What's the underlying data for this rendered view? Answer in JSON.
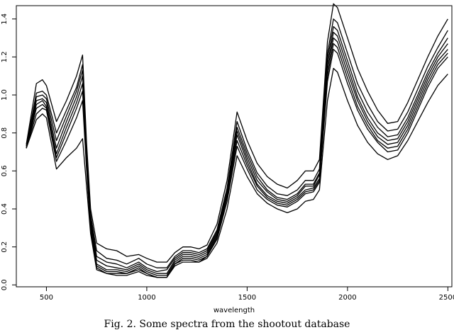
{
  "chart_data": {
    "type": "line",
    "title": "",
    "xlabel": "wavelength",
    "ylabel": "",
    "xlim": [
      350,
      2520
    ],
    "ylim": [
      -0.01,
      1.47
    ],
    "x_ticks": [
      500,
      1000,
      1500,
      2000,
      2500
    ],
    "y_ticks": [
      0.0,
      0.2,
      0.4,
      0.6,
      0.8,
      1.0,
      1.2,
      1.4
    ],
    "x_tick_labels": [
      "500",
      "1000",
      "1500",
      "2000",
      "2500"
    ],
    "y_tick_labels": [
      "0.0",
      "0.2",
      "0.4",
      "0.6",
      "0.8",
      "1.0",
      "1.2",
      "1.4"
    ],
    "grid": false,
    "line_color": "#000000",
    "x": [
      400,
      450,
      480,
      500,
      550,
      600,
      650,
      680,
      700,
      720,
      750,
      800,
      850,
      900,
      960,
      1000,
      1050,
      1100,
      1140,
      1180,
      1220,
      1260,
      1300,
      1350,
      1400,
      1450,
      1500,
      1550,
      1600,
      1650,
      1700,
      1750,
      1790,
      1830,
      1860,
      1900,
      1930,
      1950,
      2000,
      2050,
      2100,
      2150,
      2200,
      2250,
      2300,
      2350,
      2400,
      2450,
      2500
    ],
    "series": [
      {
        "values": [
          0.74,
          1.06,
          1.08,
          1.05,
          0.86,
          0.97,
          1.1,
          1.21,
          0.75,
          0.4,
          0.22,
          0.19,
          0.18,
          0.15,
          0.16,
          0.14,
          0.12,
          0.12,
          0.17,
          0.2,
          0.2,
          0.19,
          0.21,
          0.32,
          0.55,
          0.91,
          0.76,
          0.64,
          0.57,
          0.53,
          0.51,
          0.55,
          0.6,
          0.6,
          0.66,
          1.28,
          1.48,
          1.46,
          1.3,
          1.14,
          1.02,
          0.92,
          0.85,
          0.86,
          0.96,
          1.08,
          1.2,
          1.31,
          1.4
        ]
      },
      {
        "values": [
          0.73,
          1.01,
          1.02,
          1.0,
          0.8,
          0.92,
          1.04,
          1.16,
          0.71,
          0.37,
          0.18,
          0.14,
          0.13,
          0.11,
          0.14,
          0.11,
          0.09,
          0.09,
          0.15,
          0.18,
          0.18,
          0.17,
          0.19,
          0.29,
          0.51,
          0.86,
          0.71,
          0.59,
          0.52,
          0.48,
          0.47,
          0.5,
          0.55,
          0.55,
          0.61,
          1.22,
          1.4,
          1.38,
          1.22,
          1.06,
          0.95,
          0.86,
          0.81,
          0.82,
          0.91,
          1.03,
          1.15,
          1.25,
          1.34
        ]
      },
      {
        "values": [
          0.73,
          0.99,
          1.0,
          0.98,
          0.76,
          0.89,
          1.02,
          1.13,
          0.69,
          0.35,
          0.15,
          0.12,
          0.11,
          0.09,
          0.12,
          0.09,
          0.07,
          0.08,
          0.14,
          0.17,
          0.17,
          0.16,
          0.18,
          0.28,
          0.49,
          0.83,
          0.69,
          0.57,
          0.5,
          0.46,
          0.45,
          0.48,
          0.53,
          0.53,
          0.59,
          1.19,
          1.36,
          1.34,
          1.18,
          1.02,
          0.91,
          0.83,
          0.78,
          0.79,
          0.88,
          1.0,
          1.12,
          1.22,
          1.3
        ]
      },
      {
        "values": [
          0.72,
          0.97,
          0.98,
          0.96,
          0.72,
          0.86,
          0.99,
          1.1,
          0.67,
          0.33,
          0.13,
          0.1,
          0.09,
          0.08,
          0.11,
          0.08,
          0.06,
          0.06,
          0.13,
          0.16,
          0.16,
          0.15,
          0.17,
          0.27,
          0.48,
          0.81,
          0.67,
          0.55,
          0.49,
          0.45,
          0.44,
          0.47,
          0.52,
          0.52,
          0.58,
          1.16,
          1.33,
          1.31,
          1.15,
          0.99,
          0.88,
          0.8,
          0.76,
          0.77,
          0.86,
          0.98,
          1.1,
          1.2,
          1.27
        ]
      },
      {
        "values": [
          0.72,
          0.95,
          0.97,
          0.94,
          0.69,
          0.83,
          0.96,
          1.06,
          0.65,
          0.31,
          0.11,
          0.08,
          0.08,
          0.07,
          0.1,
          0.07,
          0.05,
          0.05,
          0.12,
          0.15,
          0.15,
          0.14,
          0.16,
          0.26,
          0.47,
          0.79,
          0.65,
          0.53,
          0.47,
          0.44,
          0.43,
          0.46,
          0.5,
          0.51,
          0.56,
          1.13,
          1.3,
          1.28,
          1.12,
          0.97,
          0.86,
          0.78,
          0.74,
          0.75,
          0.84,
          0.96,
          1.08,
          1.18,
          1.24
        ]
      },
      {
        "values": [
          0.72,
          0.93,
          0.95,
          0.93,
          0.67,
          0.8,
          0.93,
          1.02,
          0.63,
          0.3,
          0.1,
          0.07,
          0.07,
          0.06,
          0.09,
          0.06,
          0.04,
          0.04,
          0.11,
          0.14,
          0.14,
          0.13,
          0.15,
          0.25,
          0.46,
          0.76,
          0.63,
          0.52,
          0.46,
          0.43,
          0.42,
          0.45,
          0.49,
          0.5,
          0.55,
          1.1,
          1.27,
          1.25,
          1.09,
          0.94,
          0.84,
          0.76,
          0.72,
          0.73,
          0.82,
          0.94,
          1.06,
          1.16,
          1.22
        ]
      },
      {
        "values": [
          0.72,
          0.9,
          0.93,
          0.92,
          0.65,
          0.76,
          0.88,
          0.97,
          0.61,
          0.29,
          0.09,
          0.06,
          0.06,
          0.06,
          0.08,
          0.06,
          0.04,
          0.04,
          0.11,
          0.13,
          0.13,
          0.12,
          0.15,
          0.24,
          0.44,
          0.73,
          0.61,
          0.5,
          0.45,
          0.42,
          0.41,
          0.44,
          0.48,
          0.49,
          0.54,
          1.07,
          1.24,
          1.22,
          1.06,
          0.92,
          0.82,
          0.75,
          0.7,
          0.71,
          0.8,
          0.92,
          1.04,
          1.14,
          1.2
        ]
      },
      {
        "values": [
          0.72,
          0.87,
          0.9,
          0.88,
          0.61,
          0.67,
          0.72,
          0.77,
          0.52,
          0.27,
          0.08,
          0.06,
          0.05,
          0.05,
          0.07,
          0.05,
          0.04,
          0.04,
          0.1,
          0.12,
          0.12,
          0.12,
          0.14,
          0.22,
          0.4,
          0.68,
          0.57,
          0.48,
          0.43,
          0.4,
          0.38,
          0.4,
          0.44,
          0.45,
          0.5,
          0.97,
          1.14,
          1.12,
          0.97,
          0.84,
          0.75,
          0.69,
          0.66,
          0.68,
          0.76,
          0.86,
          0.96,
          1.05,
          1.11
        ]
      }
    ]
  },
  "caption": "Fig. 2. Some spectra from the shootout database"
}
